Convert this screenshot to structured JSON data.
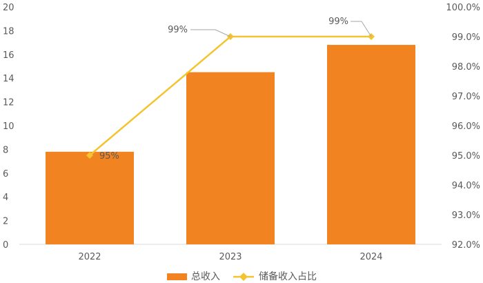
{
  "chart_data": {
    "type": "bar",
    "categories": [
      "2022",
      "2023",
      "2024"
    ],
    "series": [
      {
        "name": "总收入",
        "type": "bar",
        "axis": "left",
        "color": "#F28321",
        "values": [
          7.8,
          14.5,
          16.8
        ]
      },
      {
        "name": "储备收入占比",
        "type": "line",
        "axis": "right",
        "color": "#F4C430",
        "values": [
          95.0,
          99.0,
          99.0
        ],
        "data_labels": [
          "95%",
          "99%",
          "99%"
        ]
      }
    ],
    "y_left": {
      "min": 0,
      "max": 20,
      "step": 2
    },
    "y_right": {
      "min": 92.0,
      "max": 100.0,
      "step": 1.0,
      "format": "percent_1dp"
    },
    "legend_position": "bottom",
    "grid": false
  }
}
